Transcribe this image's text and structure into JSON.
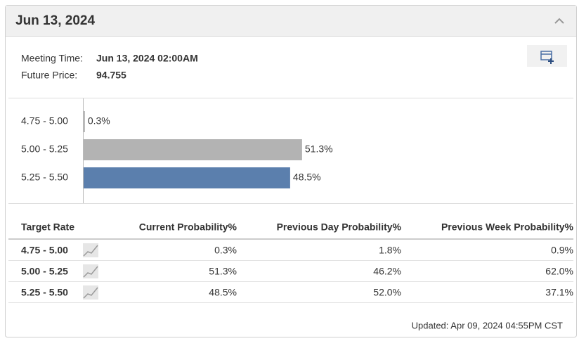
{
  "header": {
    "title": "Jun 13, 2024"
  },
  "meeting": {
    "rows": [
      [
        "Meeting Time:",
        "Jun 13, 2024 02:00AM"
      ],
      [
        "Future Price:",
        "94.755"
      ]
    ]
  },
  "chart_data": {
    "type": "bar",
    "orientation": "horizontal",
    "categories": [
      "4.75 - 5.00",
      "5.00 - 5.25",
      "5.25 - 5.50"
    ],
    "values": [
      0.3,
      51.3,
      48.5
    ],
    "value_labels": [
      "0.3%",
      "51.3%",
      "48.5%"
    ],
    "colors": [
      "#b3b3b3",
      "#b3b3b3",
      "#5b7fad"
    ]
  },
  "table": {
    "headers": [
      "Target Rate",
      "Current Probability%",
      "Previous Day Probability%",
      "Previous Week Probability%"
    ],
    "rows": [
      [
        "4.75 - 5.00",
        "0.3%",
        "1.8%",
        "0.9%"
      ],
      [
        "5.00 - 5.25",
        "51.3%",
        "46.2%",
        "62.0%"
      ],
      [
        "5.25 - 5.50",
        "48.5%",
        "52.0%",
        "37.1%"
      ]
    ]
  },
  "footer": {
    "updated": "Updated: Apr 09, 2024 04:55PM CST"
  }
}
